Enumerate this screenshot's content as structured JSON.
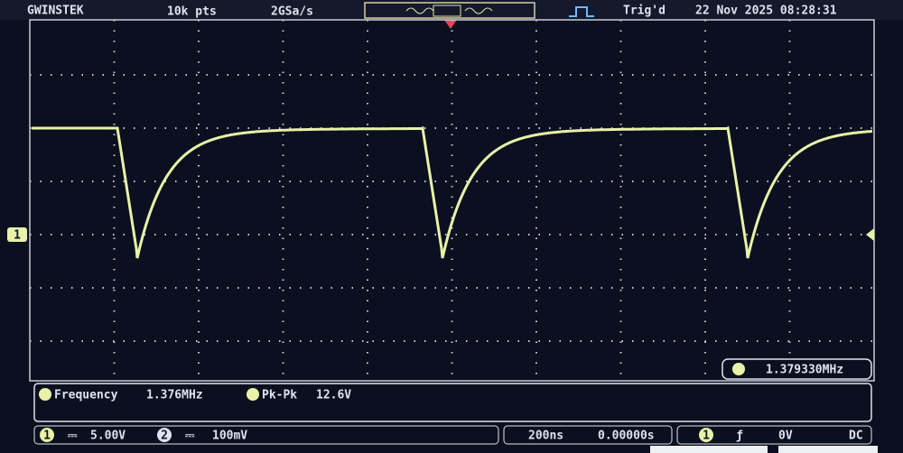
{
  "header": {
    "logo": "GWINSTEK",
    "record_length": "10k pts",
    "sample_rate": "2GSa/s",
    "trigger_status": "Trig'd",
    "datetime": "22 Nov 2025 08:28:31"
  },
  "readout": {
    "frequency_counter": "1.379330MHz"
  },
  "measurements": [
    {
      "name": "Frequency",
      "value": "1.376MHz"
    },
    {
      "name": "Pk-Pk",
      "value": "12.6V"
    }
  ],
  "status": {
    "ch1_number": "1",
    "ch1_scale": "5.00V",
    "ch2_number": "2",
    "ch2_scale": "100mV",
    "timebase": "200ns",
    "position": "0.00000s",
    "trigger_source": "1",
    "trigger_level": "0V",
    "coupling": "DC"
  },
  "ground_marker": "1"
}
